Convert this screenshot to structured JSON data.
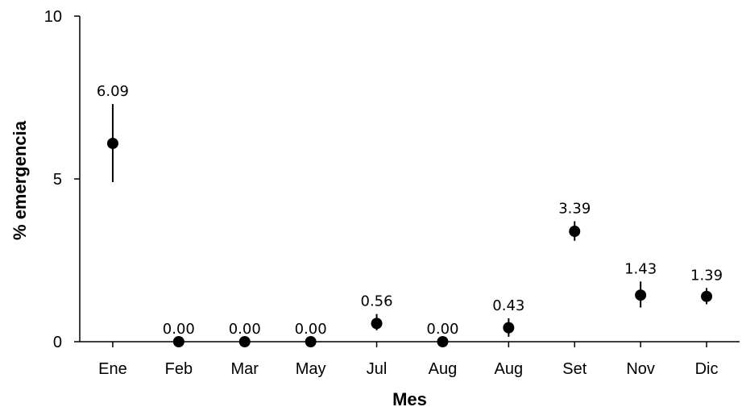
{
  "chart_data": {
    "type": "scatter",
    "title": "",
    "xlabel": "Mes",
    "ylabel": "% emergencia",
    "ylim": [
      0,
      10
    ],
    "yticks": [
      0,
      5,
      10
    ],
    "grid": false,
    "legend": "none",
    "marker_color": "#000000",
    "categories": [
      "Ene",
      "Feb",
      "Mar",
      "May",
      "Jul",
      "Aug",
      "Aug",
      "Set",
      "Nov",
      "Dic"
    ],
    "series": [
      {
        "values": [
          6.09,
          0.0,
          0.0,
          0.0,
          0.56,
          0.0,
          0.43,
          3.39,
          1.43,
          1.39
        ],
        "error_low": [
          4.9,
          0.0,
          0.0,
          0.0,
          0.35,
          0.0,
          0.15,
          3.1,
          1.05,
          1.15
        ],
        "error_high": [
          7.3,
          0.0,
          0.0,
          0.0,
          0.85,
          0.0,
          0.72,
          3.7,
          1.85,
          1.65
        ],
        "labels": [
          "6.09",
          "0.00",
          "0.00",
          "0.00",
          "0.56",
          "0.00",
          "0.43",
          "3.39",
          "1.43",
          "1.39"
        ]
      }
    ]
  }
}
